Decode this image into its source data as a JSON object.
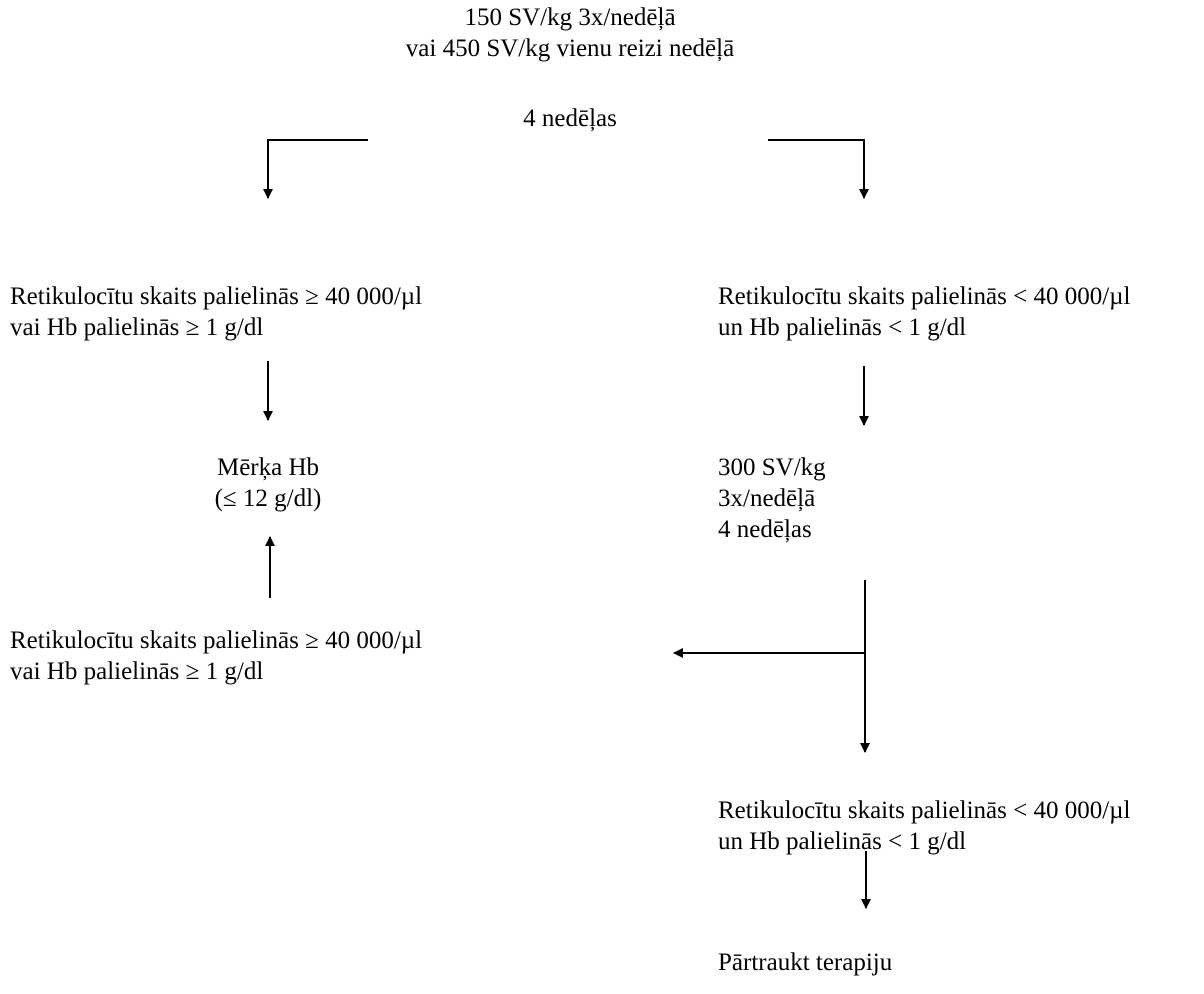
{
  "start": {
    "line1": "150 SV/kg 3x/nedēļā",
    "line2": "vai 450 SV/kg vienu reizi nedēļā"
  },
  "period_1": "4 nedēļas",
  "left_response": {
    "line1": "Retikulocītu skaits palielinās ≥ 40 000/µl",
    "line2": "vai Hb palielinās ≥ 1 g/dl"
  },
  "right_response": {
    "line1": "Retikulocītu skaits palielinās < 40 000/µl",
    "line2": "un Hb palielinās < 1 g/dl"
  },
  "target": {
    "line1": "Mērķa Hb",
    "line2": "(≤ 12 g/dl)"
  },
  "increased_dose": {
    "line1": "300 SV/kg",
    "line2": "3x/nedēļā",
    "line3": "4 nedēļas"
  },
  "left_response_2": {
    "line1": "Retikulocītu skaits palielinās ≥ 40 000/µl",
    "line2": "vai Hb palielinās ≥ 1 g/dl"
  },
  "right_response_2": {
    "line1": "Retikulocītu skaits palielinās < 40 000/µl",
    "line2": "un Hb palielinās < 1 g/dl"
  },
  "stop": "Pārtraukt terapiju"
}
